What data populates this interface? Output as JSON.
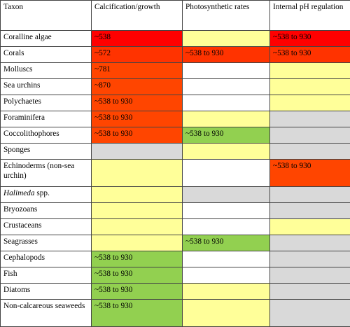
{
  "headers": [
    "Taxon",
    "Calcification/growth",
    "Photosynthetic rates",
    "Internal pH regulation"
  ],
  "rows": [
    {
      "taxon": "Coralline algae",
      "italic": "",
      "suffix": "",
      "cells": [
        {
          "text": "~538",
          "color": "red"
        },
        {
          "text": "",
          "color": "yellow"
        },
        {
          "text": "~538 to 930",
          "color": "red"
        }
      ]
    },
    {
      "taxon": "Corals",
      "italic": "",
      "suffix": "",
      "cells": [
        {
          "text": "~572",
          "color": "redorange"
        },
        {
          "text": "~538 to 930",
          "color": "redorange"
        },
        {
          "text": "~538 to 930",
          "color": "redorange"
        }
      ]
    },
    {
      "taxon": "Molluscs",
      "italic": "",
      "suffix": "",
      "cells": [
        {
          "text": "~781",
          "color": "orange"
        },
        {
          "text": "",
          "color": "white"
        },
        {
          "text": "",
          "color": "yellow"
        }
      ]
    },
    {
      "taxon": "Sea urchins",
      "italic": "",
      "suffix": "",
      "cells": [
        {
          "text": "~870",
          "color": "orange"
        },
        {
          "text": "",
          "color": "white"
        },
        {
          "text": "",
          "color": "yellow"
        }
      ]
    },
    {
      "taxon": "Polychaetes",
      "italic": "",
      "suffix": "",
      "cells": [
        {
          "text": "~538 to 930",
          "color": "orange"
        },
        {
          "text": "",
          "color": "white"
        },
        {
          "text": "",
          "color": "yellow"
        }
      ]
    },
    {
      "taxon": "Foraminifera",
      "italic": "",
      "suffix": "",
      "cells": [
        {
          "text": "~538 to 930",
          "color": "orange"
        },
        {
          "text": "",
          "color": "yellow"
        },
        {
          "text": "",
          "color": "gray"
        }
      ]
    },
    {
      "taxon": "Coccolithophores",
      "italic": "",
      "suffix": "",
      "cells": [
        {
          "text": "~538 to 930",
          "color": "orange"
        },
        {
          "text": "~538 to 930",
          "color": "green"
        },
        {
          "text": "",
          "color": "gray"
        }
      ]
    },
    {
      "taxon": "Sponges",
      "italic": "",
      "suffix": "",
      "cells": [
        {
          "text": "",
          "color": "gray"
        },
        {
          "text": "",
          "color": "yellow"
        },
        {
          "text": "",
          "color": "gray"
        }
      ]
    },
    {
      "taxon": "Echinoderms (non-sea urchin)",
      "italic": "",
      "suffix": "",
      "cells": [
        {
          "text": "",
          "color": "yellow"
        },
        {
          "text": "",
          "color": "white"
        },
        {
          "text": "~538 to 930",
          "color": "orange"
        }
      ]
    },
    {
      "taxon": "",
      "italic": "Halimeda",
      "suffix": " spp.",
      "cells": [
        {
          "text": "",
          "color": "yellow"
        },
        {
          "text": "",
          "color": "gray"
        },
        {
          "text": "",
          "color": "gray"
        }
      ]
    },
    {
      "taxon": "Bryozoans",
      "italic": "",
      "suffix": "",
      "cells": [
        {
          "text": "",
          "color": "yellow"
        },
        {
          "text": "",
          "color": "white"
        },
        {
          "text": "",
          "color": "gray"
        }
      ]
    },
    {
      "taxon": "Crustaceans",
      "italic": "",
      "suffix": "",
      "cells": [
        {
          "text": "",
          "color": "yellow"
        },
        {
          "text": "",
          "color": "white"
        },
        {
          "text": "",
          "color": "yellow"
        }
      ]
    },
    {
      "taxon": "Seagrasses",
      "italic": "",
      "suffix": "",
      "cells": [
        {
          "text": "",
          "color": "yellow"
        },
        {
          "text": "~538 to 930",
          "color": "green"
        },
        {
          "text": "",
          "color": "gray"
        }
      ]
    },
    {
      "taxon": "Cephalopods",
      "italic": "",
      "suffix": "",
      "cells": [
        {
          "text": "~538 to 930",
          "color": "green"
        },
        {
          "text": "",
          "color": "white"
        },
        {
          "text": "",
          "color": "gray"
        }
      ]
    },
    {
      "taxon": "Fish",
      "italic": "",
      "suffix": "",
      "cells": [
        {
          "text": "~538 to 930",
          "color": "green"
        },
        {
          "text": "",
          "color": "white"
        },
        {
          "text": "",
          "color": "gray"
        }
      ]
    },
    {
      "taxon": "Diatoms",
      "italic": "",
      "suffix": "",
      "cells": [
        {
          "text": "~538 to 930",
          "color": "green"
        },
        {
          "text": "",
          "color": "yellow"
        },
        {
          "text": "",
          "color": "gray"
        }
      ]
    },
    {
      "taxon": "Non-calcareous seaweeds",
      "italic": "",
      "suffix": "",
      "cells": [
        {
          "text": "~538 to 930",
          "color": "green"
        },
        {
          "text": "",
          "color": "yellow"
        },
        {
          "text": "",
          "color": "gray"
        }
      ]
    }
  ],
  "colors": {
    "red": "#ff0000",
    "redorange": "#ff3300",
    "orange": "#ff4500",
    "yellow": "#ffff99",
    "green": "#92d050",
    "gray": "#d9d9d9",
    "white": "#ffffff"
  }
}
